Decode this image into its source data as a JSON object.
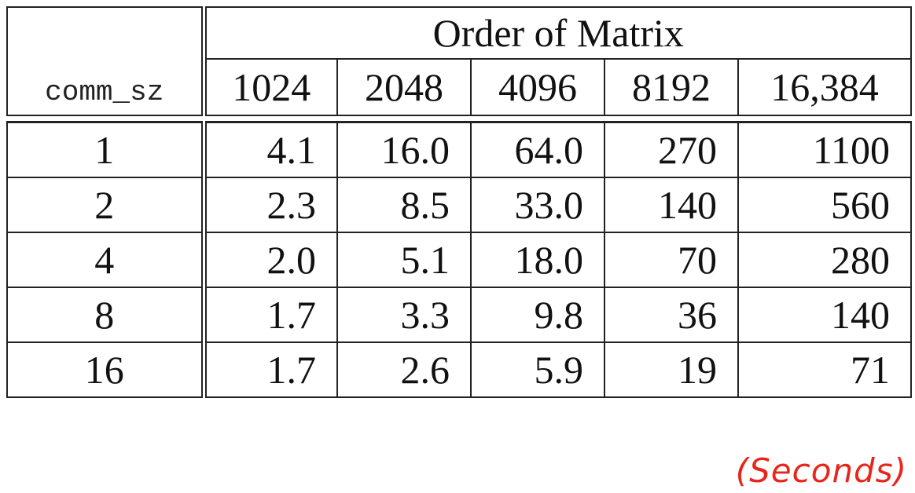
{
  "table": {
    "row_header_label": "comm_sz",
    "group_header": "Order of Matrix",
    "columns": [
      "1024",
      "2048",
      "4096",
      "8192",
      "16,384"
    ],
    "rows": [
      {
        "comm_sz": "1",
        "values": [
          "4.1",
          "16.0",
          "64.0",
          "270",
          "1100"
        ]
      },
      {
        "comm_sz": "2",
        "values": [
          "2.3",
          "8.5",
          "33.0",
          "140",
          "560"
        ]
      },
      {
        "comm_sz": "4",
        "values": [
          "2.0",
          "5.1",
          "18.0",
          "70",
          "280"
        ]
      },
      {
        "comm_sz": "8",
        "values": [
          "1.7",
          "3.3",
          "9.8",
          "36",
          "140"
        ]
      },
      {
        "comm_sz": "16",
        "values": [
          "1.7",
          "2.6",
          "5.9",
          "19",
          "71"
        ]
      }
    ]
  },
  "unit_note": "(Seconds)",
  "colors": {
    "unit_note": "#e8251b",
    "text": "#111111",
    "rule": "#222222"
  }
}
